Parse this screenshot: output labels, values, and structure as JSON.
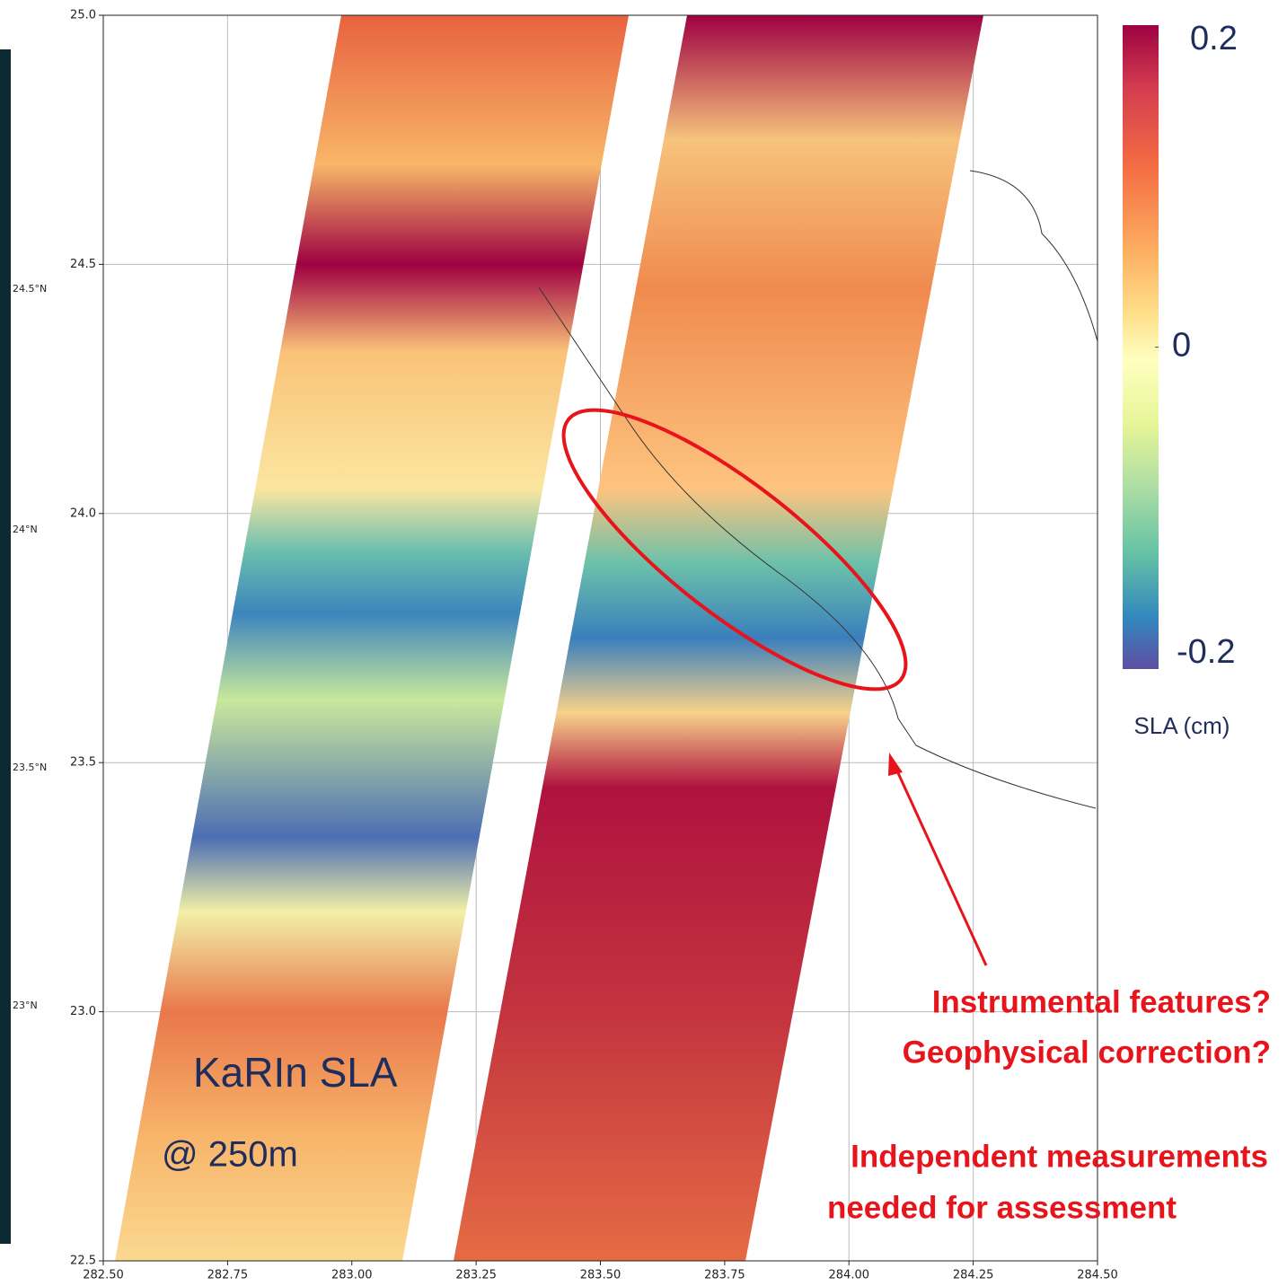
{
  "map": {
    "xlim": [
      282.5,
      284.5
    ],
    "ylim": [
      22.5,
      25.0
    ],
    "xticks": [
      {
        "value": 282.5,
        "label": "282.50"
      },
      {
        "value": 282.75,
        "label": "282.75"
      },
      {
        "value": 283,
        "label": "283.00"
      },
      {
        "value": 283.25,
        "label": "283.25"
      },
      {
        "value": 283.5,
        "label": "283.50"
      },
      {
        "value": 283.75,
        "label": "283.75"
      },
      {
        "value": 284,
        "label": "284.00"
      },
      {
        "value": 284.25,
        "label": "284.25"
      },
      {
        "value": 284.5,
        "label": "284.50"
      }
    ],
    "yticks": [
      {
        "value": 22.5,
        "label": "22.5"
      },
      {
        "value": 23,
        "label": "23.0"
      },
      {
        "value": 23.5,
        "label": "23.5"
      },
      {
        "value": 24,
        "label": "24.0"
      },
      {
        "value": 24.5,
        "label": "24.5"
      },
      {
        "value": 25,
        "label": "25.0"
      }
    ],
    "grid": true,
    "colorbar": {
      "label": "SLA (cm)",
      "lim": [
        -0.21,
        0.21
      ],
      "ticks": [
        0.2,
        0,
        -0.2
      ]
    },
    "annotations": {
      "title": "KaRIn SLA",
      "resolution": "@ 250m",
      "question_1": "Instrumental features?",
      "question_2": "Geophysical correction?",
      "note_1": "Independent measurements",
      "note_2": "needed for assessment"
    }
  },
  "left_panel": {
    "lat_labels": [
      "24.5°N",
      "24°N",
      "23.5°N",
      "23°N"
    ]
  }
}
